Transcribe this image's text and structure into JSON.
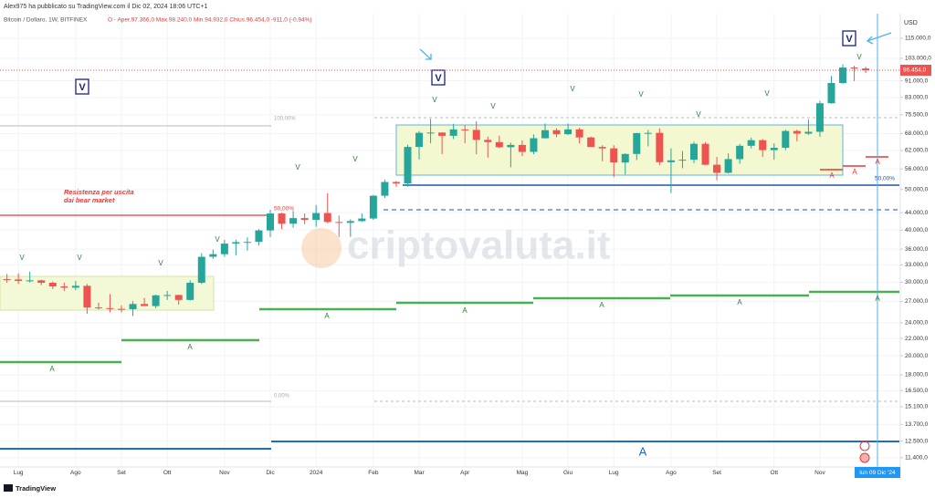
{
  "header": {
    "publisher": "Alex975 ha pubblicato su TradingView.com il Dic 02, 2024 18:06 UTC+1",
    "symbol": "Bitcoin / Dollaro, 1W, BITFINEX",
    "ohlc": "O - Aper.97.366,0  Max.98.240,0  Min.94.932,0  Chius.96.454,0  -911,0 (-0,94%)"
  },
  "chart_data": {
    "type": "candlestick",
    "categories": [
      null,
      "Lug",
      null,
      null,
      null,
      null,
      "Ago",
      null,
      null,
      null,
      "Set",
      null,
      null,
      null,
      "Ott",
      null,
      null,
      null,
      null,
      "Nov",
      null,
      null,
      null,
      "Dic",
      null,
      null,
      null,
      "2024",
      null,
      null,
      null,
      null,
      "Feb",
      null,
      null,
      null,
      "Mar",
      null,
      null,
      null,
      "Apr",
      null,
      null,
      null,
      null,
      "Mag",
      null,
      null,
      null,
      "Giu",
      null,
      null,
      null,
      "Lug",
      null,
      null,
      null,
      null,
      "Ago",
      null,
      null,
      null,
      "Set",
      null,
      null,
      null,
      null,
      "Ott",
      null,
      null,
      null,
      "Nov",
      null,
      null,
      null,
      null
    ],
    "open": [
      30500,
      30450,
      30200,
      30300,
      29900,
      29300,
      29100,
      29400,
      26100,
      26000,
      25900,
      25850,
      26600,
      26300,
      27900,
      27950,
      27200,
      29900,
      34500,
      35000,
      37100,
      37400,
      37450,
      39900,
      43800,
      41400,
      42700,
      42300,
      43900,
      41800,
      41600,
      42000,
      42600,
      48300,
      52100,
      51700,
      63200,
      68300,
      68400,
      67200,
      69600,
      69400,
      65700,
      64900,
      63100,
      63900,
      61500,
      66300,
      69300,
      67800,
      69600,
      66600,
      63200,
      62700,
      58000,
      60800,
      68200,
      68300,
      58100,
      58700,
      58900,
      64300,
      57300,
      54800,
      59100,
      63600,
      65600,
      62100,
      62900,
      69000,
      68000,
      68700,
      80400,
      89900,
      97900,
      97366
    ],
    "high": [
      31400,
      31500,
      31800,
      30400,
      30100,
      29900,
      30200,
      29700,
      26800,
      28100,
      26400,
      27000,
      27500,
      28000,
      28600,
      28000,
      30300,
      35200,
      35900,
      37900,
      37900,
      38400,
      40200,
      44700,
      44000,
      44400,
      43800,
      45900,
      49000,
      43300,
      42400,
      43800,
      48500,
      52800,
      52400,
      64000,
      69000,
      73800,
      68500,
      71800,
      71300,
      72800,
      66900,
      67200,
      64700,
      65500,
      67700,
      71900,
      70000,
      71900,
      70200,
      66900,
      63800,
      63800,
      61000,
      68300,
      69400,
      70000,
      62700,
      61800,
      65000,
      64900,
      59800,
      61000,
      64200,
      66500,
      66000,
      64500,
      69500,
      69500,
      73600,
      81500,
      93400,
      99600,
      98900,
      98240
    ],
    "low": [
      29900,
      29700,
      29950,
      29500,
      28900,
      28600,
      28700,
      25200,
      25800,
      25400,
      25400,
      24900,
      26400,
      26000,
      27200,
      26500,
      27100,
      29700,
      34100,
      34500,
      34800,
      35700,
      36700,
      38500,
      40200,
      40500,
      41300,
      40700,
      41500,
      38500,
      38500,
      41800,
      42300,
      47700,
      50700,
      50800,
      59000,
      64500,
      60800,
      66000,
      64500,
      60700,
      59600,
      62800,
      56500,
      60100,
      60700,
      66200,
      66700,
      67500,
      64500,
      63400,
      58400,
      53500,
      54300,
      58800,
      63400,
      57200,
      49000,
      56200,
      57800,
      57200,
      52600,
      54600,
      57600,
      62700,
      59800,
      58900,
      62100,
      65200,
      67500,
      66800,
      80200,
      89500,
      90800,
      94932
    ],
    "close": [
      30450,
      30200,
      30300,
      29900,
      29300,
      29100,
      29400,
      26100,
      26000,
      25900,
      25850,
      26600,
      26300,
      27900,
      27950,
      27200,
      29900,
      34500,
      35000,
      37100,
      37400,
      37450,
      39900,
      43800,
      41400,
      42700,
      42300,
      43900,
      41800,
      41600,
      42000,
      42600,
      48300,
      52100,
      51700,
      63200,
      68300,
      68400,
      67200,
      69600,
      69400,
      65700,
      64900,
      63100,
      63900,
      61500,
      66300,
      69300,
      67800,
      69600,
      66600,
      63200,
      62700,
      58000,
      60800,
      68200,
      68300,
      58100,
      58700,
      58900,
      64300,
      57300,
      54800,
      59100,
      63600,
      65600,
      62100,
      62900,
      69000,
      68000,
      68700,
      80400,
      89900,
      97900,
      97365,
      96454
    ],
    "up_color": "#26a69a",
    "down_color": "#ef5350",
    "log_scale": true,
    "grid": true,
    "ylim": [
      10835,
      131700
    ],
    "yticks": [
      {
        "value": 115000,
        "label": "115.000,0"
      },
      {
        "value": 103000,
        "label": "103.000,0"
      },
      {
        "value": 91000,
        "label": "91.000,0"
      },
      {
        "value": 83000,
        "label": "83.000,0"
      },
      {
        "value": 75500,
        "label": "75.500,0"
      },
      {
        "value": 68000,
        "label": "68.000,0"
      },
      {
        "value": 62000,
        "label": "62.000,0"
      },
      {
        "value": 56000,
        "label": "56.000,0"
      },
      {
        "value": 50000,
        "label": "50.000,0"
      },
      {
        "value": 44000,
        "label": "44.000,0"
      },
      {
        "value": 40000,
        "label": "40.000,0"
      },
      {
        "value": 36000,
        "label": "36.000,0"
      },
      {
        "value": 33000,
        "label": "33.000,0"
      },
      {
        "value": 30000,
        "label": "30.000,0"
      },
      {
        "value": 27000,
        "label": "27.000,0"
      },
      {
        "value": 24000,
        "label": "24.000,0"
      },
      {
        "value": 22000,
        "label": "22.000,0"
      },
      {
        "value": 20000,
        "label": "20.000,0"
      },
      {
        "value": 18000,
        "label": "18.000,0"
      },
      {
        "value": 16500,
        "label": "16.500,0"
      },
      {
        "value": 15100,
        "label": "15.100,0"
      },
      {
        "value": 13700,
        "label": "13.700,0"
      },
      {
        "value": 12500,
        "label": "12.500,0"
      },
      {
        "value": 11400,
        "label": "11.400,0"
      }
    ],
    "y_unit": "USD",
    "last_price": {
      "value": 96454,
      "label": "96.454,0"
    },
    "cursor_date": "lun 09 Dic '24"
  },
  "drawings": {
    "fib_labels": [
      "100,00%",
      "50,00%",
      "0,00%"
    ],
    "range_label": "50,00%",
    "note": [
      "Resistenza per uscita",
      "dai bear market"
    ],
    "v_marks": [
      "V",
      "V",
      "V",
      "V",
      "V",
      "V",
      "V",
      "V",
      "V",
      "V",
      "V",
      "V",
      "V"
    ],
    "boxed_v": [
      "V",
      "V",
      "V"
    ],
    "a_marks": [
      "A",
      "A",
      "A",
      "A",
      "A",
      "A",
      "A"
    ],
    "red_a_marks": [
      "A",
      "A",
      "A"
    ],
    "big_a": "A"
  },
  "watermark": "criptovaluta.it",
  "footer": "TradingView"
}
